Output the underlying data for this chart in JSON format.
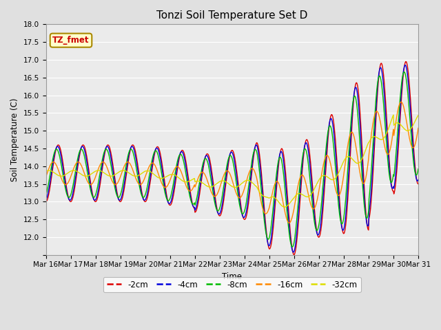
{
  "title": "Tonzi Soil Temperature Set D",
  "xlabel": "Time",
  "ylabel": "Soil Temperature (C)",
  "ylim": [
    11.5,
    18.0
  ],
  "yticks": [
    11.5,
    12.0,
    12.5,
    13.0,
    13.5,
    14.0,
    14.5,
    15.0,
    15.5,
    16.0,
    16.5,
    17.0,
    17.5,
    18.0
  ],
  "x_labels": [
    "Mar 16",
    "Mar 17",
    "Mar 18",
    "Mar 19",
    "Mar 20",
    "Mar 21",
    "Mar 22",
    "Mar 23",
    "Mar 24",
    "Mar 25",
    "Mar 26",
    "Mar 27",
    "Mar 28",
    "Mar 29",
    "Mar 30",
    "Mar 31"
  ],
  "series_labels": [
    "-2cm",
    "-4cm",
    "-8cm",
    "-16cm",
    "-32cm"
  ],
  "series_colors": [
    "#dd0000",
    "#0000dd",
    "#00bb00",
    "#ff8800",
    "#dddd00"
  ],
  "background_color": "#e0e0e0",
  "plot_bg_color": "#ebebeb",
  "grid_color": "#ffffff"
}
